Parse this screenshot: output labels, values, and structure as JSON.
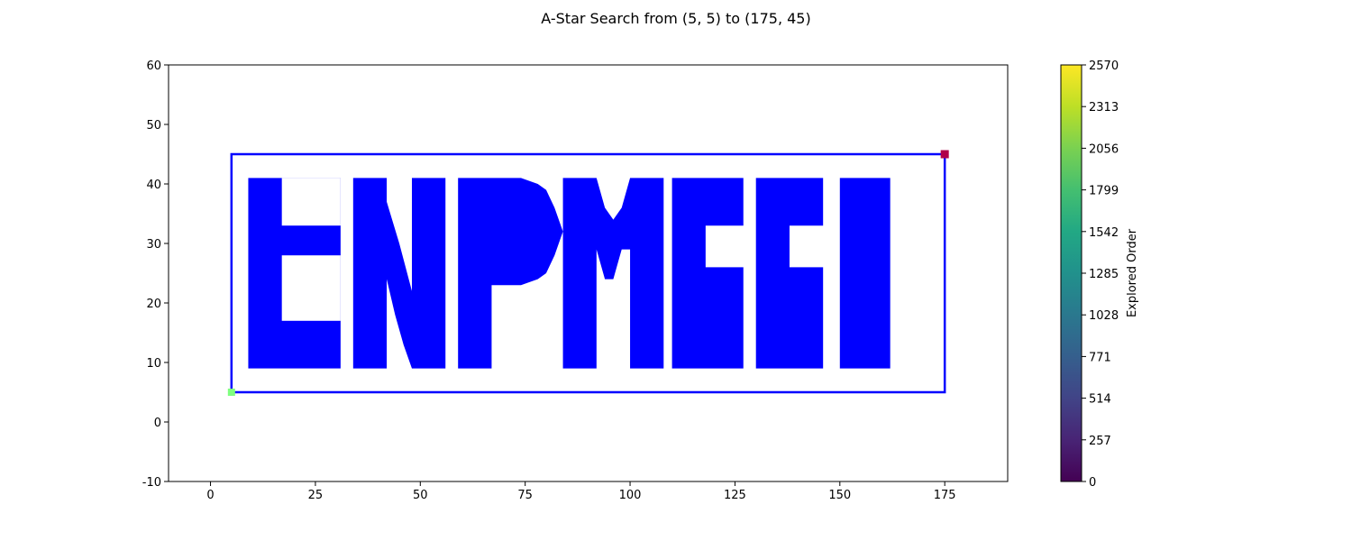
{
  "chart_data": {
    "type": "scatter",
    "title": "A-Star Search from (5, 5) to (175, 45)",
    "xlim": [
      -10,
      190
    ],
    "ylim": [
      -10,
      60
    ],
    "x_ticks": [
      0,
      25,
      50,
      75,
      100,
      125,
      150,
      175
    ],
    "y_ticks": [
      -10,
      0,
      10,
      20,
      30,
      40,
      50,
      60
    ],
    "grid": false,
    "colorbar": {
      "label": "Explored Order",
      "range": [
        0,
        2570
      ],
      "ticks": [
        0,
        257,
        514,
        771,
        1028,
        1285,
        1542,
        1799,
        2056,
        2313,
        2570
      ],
      "colormap": "viridis"
    },
    "obstacle_color": "#0000ff",
    "start": {
      "x": 5,
      "y": 5,
      "color": "#7fff7f"
    },
    "goal": {
      "x": 175,
      "y": 45,
      "color": "#b0004a"
    },
    "path": {
      "color": "#0000ff",
      "points": [
        [
          5,
          5
        ],
        [
          175,
          5
        ],
        [
          175,
          45
        ],
        [
          5,
          45
        ],
        [
          5,
          5
        ]
      ]
    },
    "obstacles": [
      {
        "letter": "E",
        "rects": [
          [
            9,
            9,
            31,
            41
          ],
          [
            17,
            17,
            31,
            28
          ],
          [
            17,
            33,
            31,
            41
          ]
        ],
        "holes": [
          [
            17,
            17,
            31,
            28
          ],
          [
            17,
            33,
            31,
            41
          ]
        ]
      },
      {
        "letter": "N",
        "polys": [
          [
            [
              34,
              9
            ],
            [
              42,
              9
            ],
            [
              42,
              37
            ],
            [
              45,
              30
            ],
            [
              48,
              22
            ],
            [
              48,
              41
            ],
            [
              56,
              41
            ],
            [
              56,
              9
            ],
            [
              48,
              9
            ],
            [
              46,
              13
            ],
            [
              44,
              18
            ],
            [
              42,
              24
            ],
            [
              42,
              41
            ],
            [
              34,
              41
            ]
          ]
        ]
      },
      {
        "letter": "P",
        "polys": [
          [
            [
              59,
              9
            ],
            [
              67,
              9
            ],
            [
              67,
              23
            ],
            [
              74,
              23
            ],
            [
              78,
              24
            ],
            [
              80,
              25
            ],
            [
              82,
              28
            ],
            [
              84,
              32
            ],
            [
              82,
              36
            ],
            [
              80,
              39
            ],
            [
              78,
              40
            ],
            [
              74,
              41
            ],
            [
              59,
              41
            ]
          ]
        ]
      },
      {
        "letter": "M",
        "polys": [
          [
            [
              84,
              9
            ],
            [
              92,
              9
            ],
            [
              92,
              29
            ],
            [
              94,
              24
            ],
            [
              96,
              24
            ],
            [
              98,
              29
            ],
            [
              100,
              29
            ],
            [
              100,
              9
            ],
            [
              108,
              9
            ],
            [
              108,
              41
            ],
            [
              100,
              41
            ],
            [
              98,
              36
            ],
            [
              96,
              34
            ],
            [
              94,
              36
            ],
            [
              92,
              41
            ],
            [
              84,
              41
            ]
          ]
        ]
      },
      {
        "letter": "C1",
        "polys": [
          [
            [
              110,
              9
            ],
            [
              127,
              9
            ],
            [
              127,
              26
            ],
            [
              118,
              26
            ],
            [
              118,
              33
            ],
            [
              127,
              33
            ],
            [
              127,
              41
            ],
            [
              110,
              41
            ]
          ]
        ]
      },
      {
        "letter": "C2",
        "polys": [
          [
            [
              130,
              9
            ],
            [
              146,
              9
            ],
            [
              146,
              26
            ],
            [
              138,
              26
            ],
            [
              138,
              33
            ],
            [
              146,
              33
            ],
            [
              146,
              41
            ],
            [
              130,
              41
            ]
          ]
        ]
      },
      {
        "letter": "I",
        "polys": [
          [
            [
              150,
              9
            ],
            [
              162,
              9
            ],
            [
              162,
              41
            ],
            [
              150,
              41
            ]
          ]
        ]
      }
    ]
  }
}
